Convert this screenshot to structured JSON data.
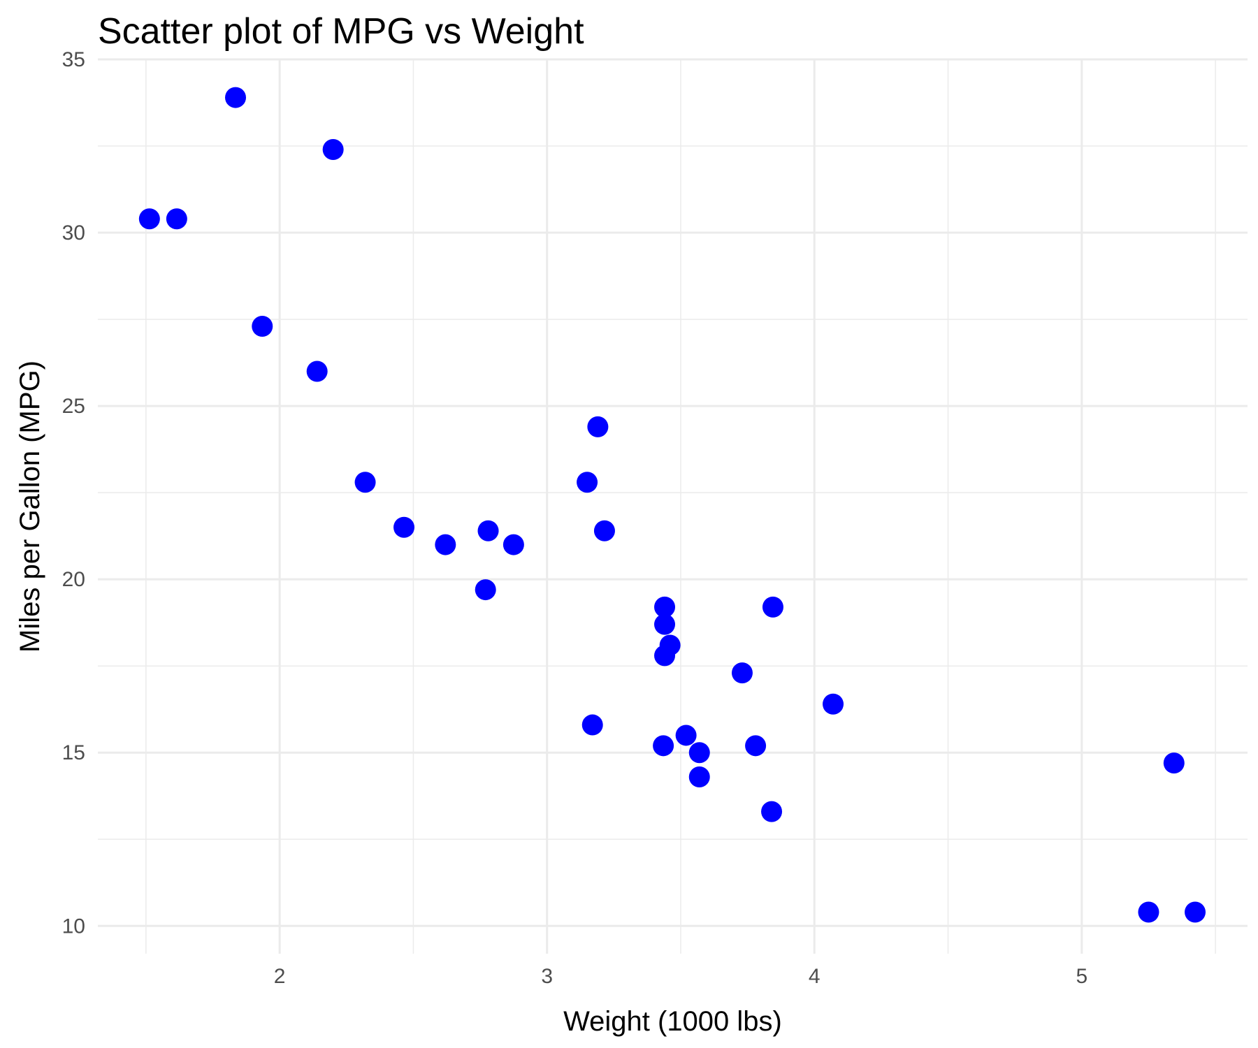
{
  "chart_data": {
    "type": "scatter",
    "title": "Scatter plot of MPG vs Weight",
    "xlabel": "Weight (1000 lbs)",
    "ylabel": "Miles per Gallon (MPG)",
    "xlim": [
      1.32,
      5.62
    ],
    "ylim": [
      9.2,
      35.0
    ],
    "xticks": [
      2,
      3,
      4,
      5
    ],
    "yticks": [
      10,
      15,
      20,
      25,
      30,
      35
    ],
    "grid": true,
    "point_color": "#0000ff",
    "points": [
      {
        "x": 2.62,
        "y": 21.0
      },
      {
        "x": 2.875,
        "y": 21.0
      },
      {
        "x": 2.32,
        "y": 22.8
      },
      {
        "x": 3.215,
        "y": 21.4
      },
      {
        "x": 3.44,
        "y": 18.7
      },
      {
        "x": 3.46,
        "y": 18.1
      },
      {
        "x": 3.57,
        "y": 14.3
      },
      {
        "x": 3.19,
        "y": 24.4
      },
      {
        "x": 3.15,
        "y": 22.8
      },
      {
        "x": 3.44,
        "y": 19.2
      },
      {
        "x": 3.44,
        "y": 17.8
      },
      {
        "x": 4.07,
        "y": 16.4
      },
      {
        "x": 3.73,
        "y": 17.3
      },
      {
        "x": 3.78,
        "y": 15.2
      },
      {
        "x": 5.25,
        "y": 10.4
      },
      {
        "x": 5.424,
        "y": 10.4
      },
      {
        "x": 5.345,
        "y": 14.7
      },
      {
        "x": 2.2,
        "y": 32.4
      },
      {
        "x": 1.615,
        "y": 30.4
      },
      {
        "x": 1.835,
        "y": 33.9
      },
      {
        "x": 2.465,
        "y": 21.5
      },
      {
        "x": 3.52,
        "y": 15.5
      },
      {
        "x": 3.435,
        "y": 15.2
      },
      {
        "x": 3.84,
        "y": 13.3
      },
      {
        "x": 3.845,
        "y": 19.2
      },
      {
        "x": 1.935,
        "y": 27.3
      },
      {
        "x": 2.14,
        "y": 26.0
      },
      {
        "x": 1.513,
        "y": 30.4
      },
      {
        "x": 3.17,
        "y": 15.8
      },
      {
        "x": 2.77,
        "y": 19.7
      },
      {
        "x": 3.57,
        "y": 15.0
      },
      {
        "x": 2.78,
        "y": 21.4
      }
    ]
  }
}
